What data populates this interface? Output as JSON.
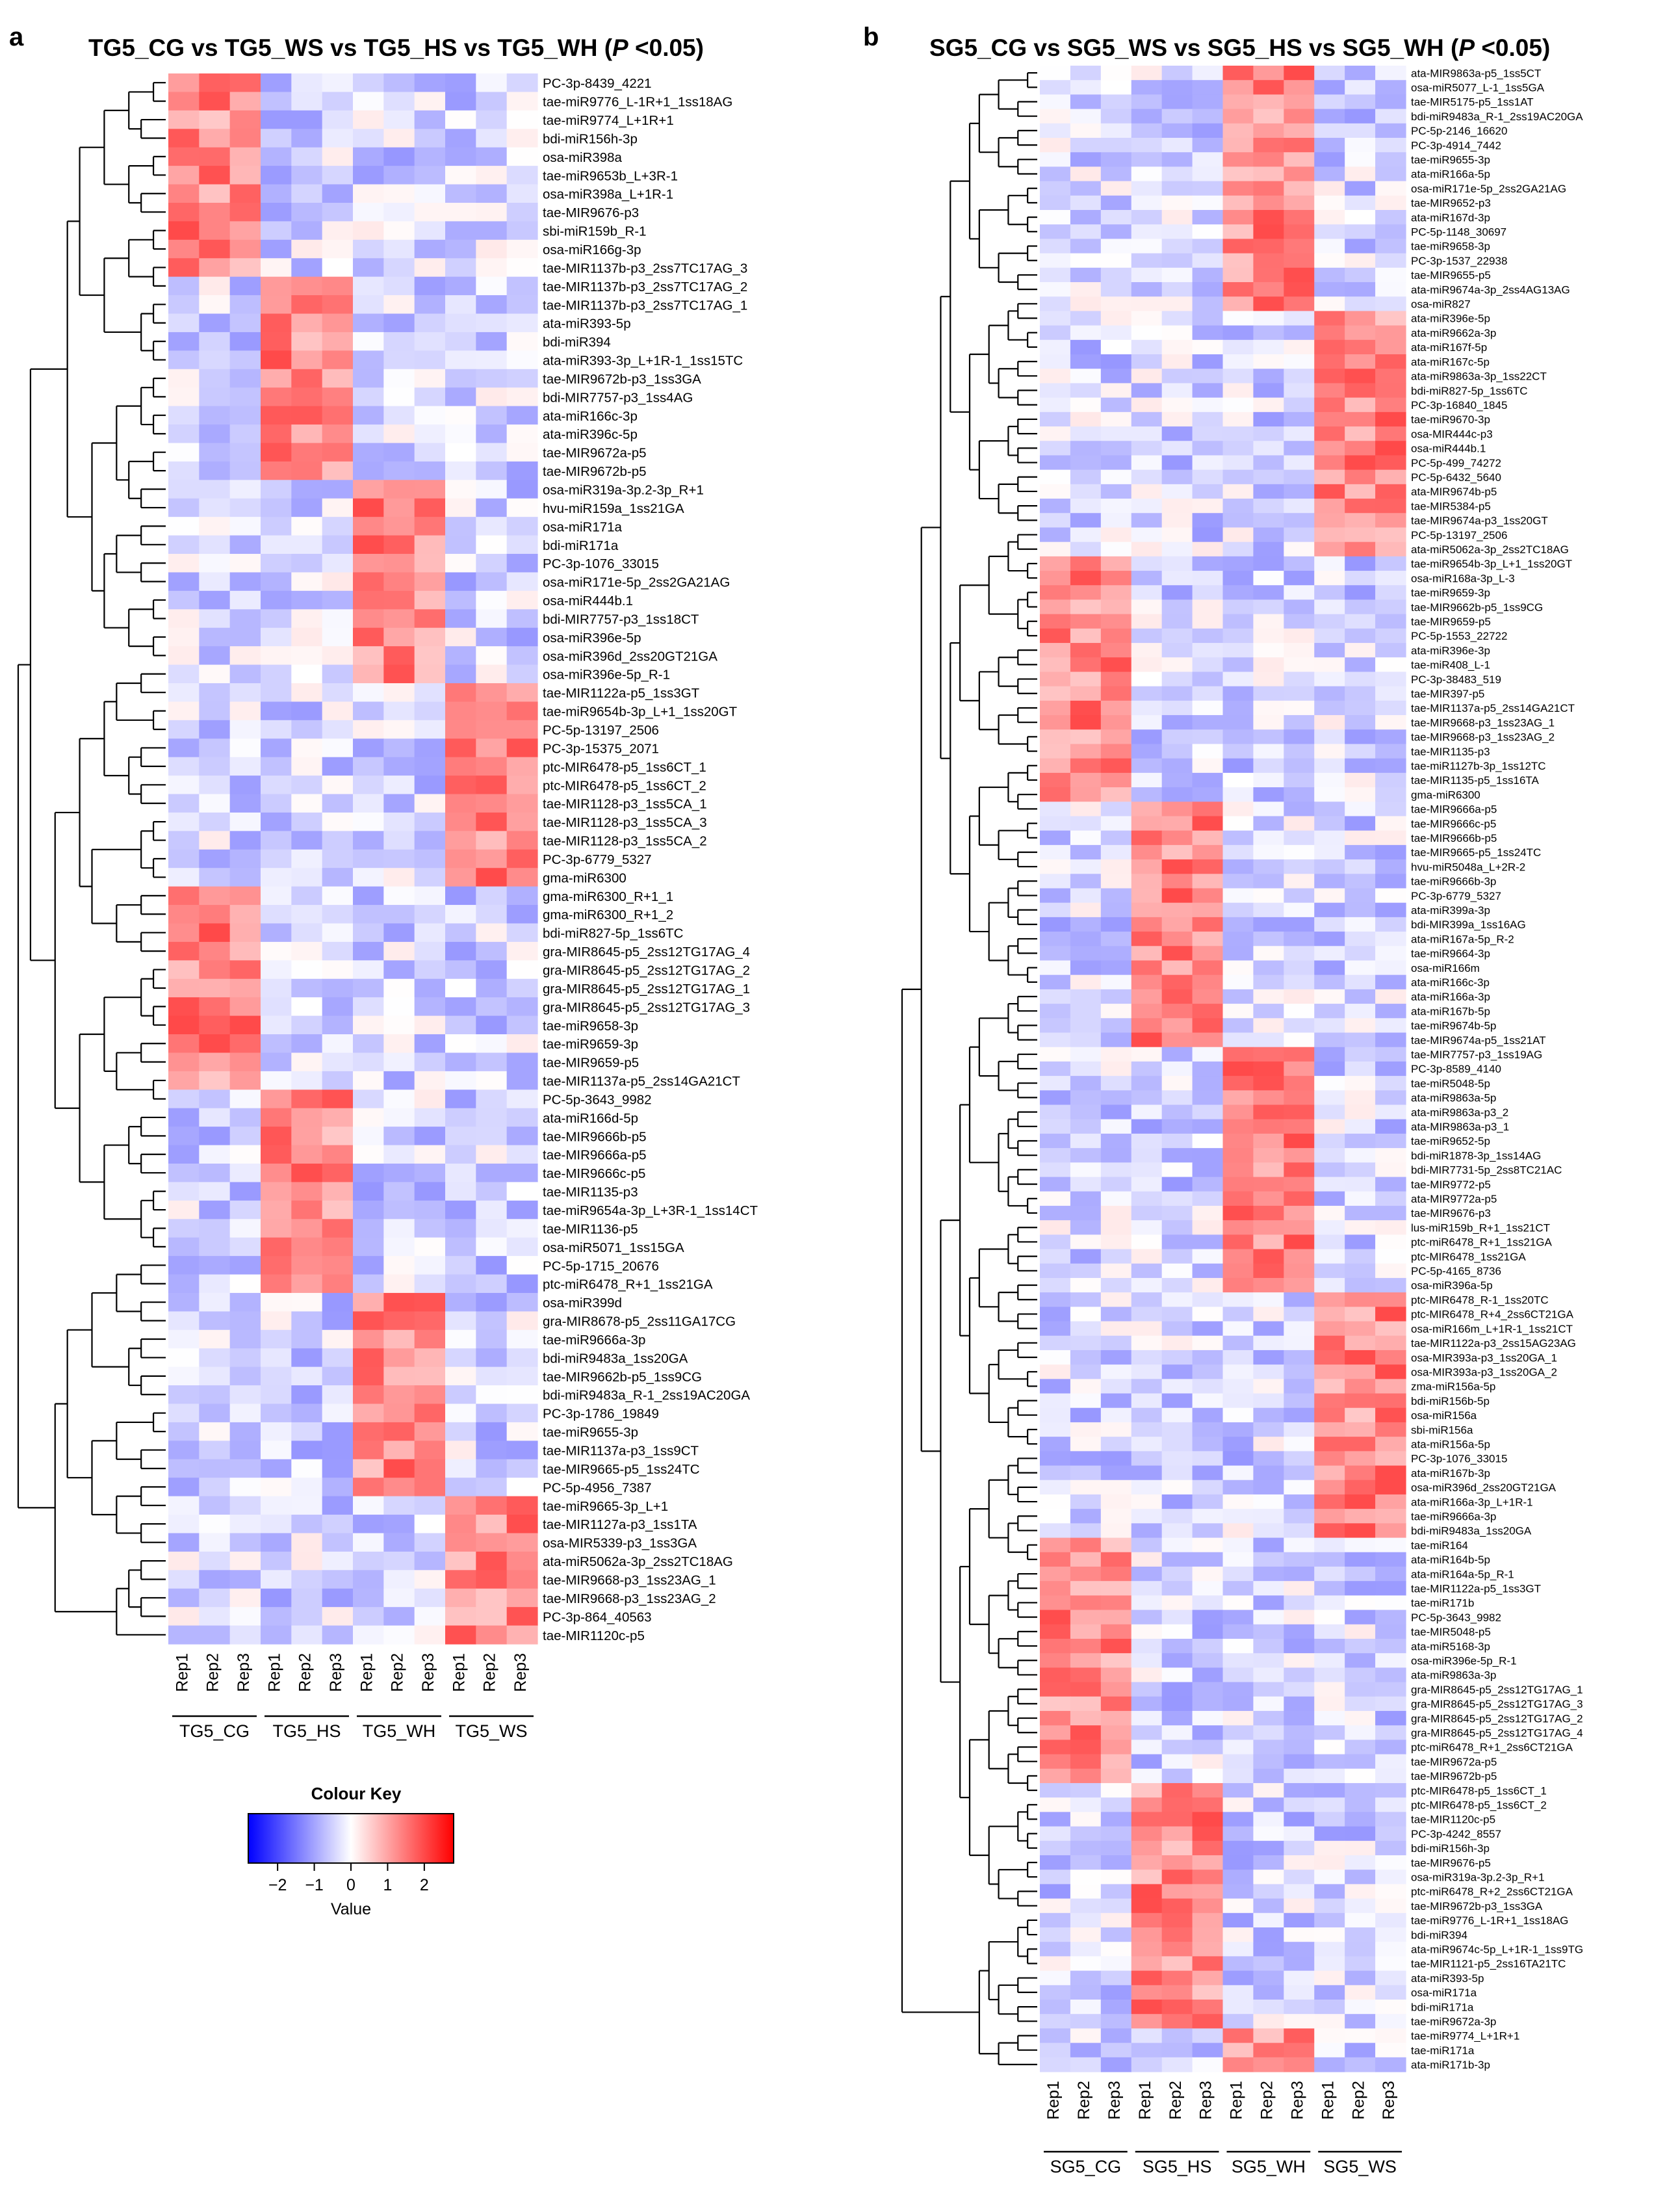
{
  "chart_data": [
    {
      "panel": "a",
      "type": "heatmap",
      "title": "TG5_CG vs TG5_WS vs TG5_HS vs TG5_WH",
      "title_suffix_italic": "P",
      "title_suffix": " <0.05)",
      "columns": [
        "Rep1",
        "Rep2",
        "Rep3",
        "Rep1",
        "Rep2",
        "Rep3",
        "Rep1",
        "Rep2",
        "Rep3",
        "Rep1",
        "Rep2",
        "Rep3"
      ],
      "groups": [
        "TG5_CG",
        "TG5_HS",
        "TG5_WH",
        "TG5_WS"
      ],
      "rows": [
        "PC-3p-8439_4221",
        "tae-miR9776_L-1R+1_1ss18AG",
        "tae-miR9774_L+1R+1",
        "bdi-miR156h-3p",
        "osa-miR398a",
        "tae-miR9653b_L+3R-1",
        "osa-miR398a_L+1R-1",
        "tae-MIR9676-p3",
        "sbi-miR159b_R-1",
        "osa-miR166g-3p",
        "tae-MIR1137b-p3_2ss7TC17AG_3",
        "tae-MIR1137b-p3_2ss7TC17AG_2",
        "tae-MIR1137b-p3_2ss7TC17AG_1",
        "ata-miR393-5p",
        "bdi-miR394",
        "ata-miR393-3p_L+1R-1_1ss15TC",
        "tae-MIR9672b-p3_1ss3GA",
        "bdi-MIR7757-p3_1ss4AG",
        "ata-miR166c-3p",
        "ata-miR396c-5p",
        "tae-MIR9672a-p5",
        "tae-MIR9672b-p5",
        "osa-miR319a-3p.2-3p_R+1",
        "hvu-miR159a_1ss21GA",
        "osa-miR171a",
        "bdi-miR171a",
        "PC-3p-1076_33015",
        "osa-miR171e-5p_2ss2GA21AG",
        "osa-miR444b.1",
        "bdi-MIR7757-p3_1ss18CT",
        "osa-miR396e-5p",
        "osa-miR396d_2ss20GT21GA",
        "osa-miR396e-5p_R-1",
        "tae-MIR1122a-p5_1ss3GT",
        "tae-miR9654b-3p_L+1_1ss20GT",
        "PC-5p-13197_2506",
        "PC-3p-15375_2071",
        "ptc-MIR6478-p5_1ss6CT_1",
        "ptc-MIR6478-p5_1ss6CT_2",
        "tae-MIR1128-p3_1ss5CA_1",
        "tae-MIR1128-p3_1ss5CA_3",
        "tae-MIR1128-p3_1ss5CA_2",
        "PC-3p-6779_5327",
        "gma-miR6300",
        "gma-miR6300_R+1_1",
        "gma-miR6300_R+1_2",
        "bdi-miR827-5p_1ss6TC",
        "gra-MIR8645-p5_2ss12TG17AG_4",
        "gra-MIR8645-p5_2ss12TG17AG_2",
        "gra-MIR8645-p5_2ss12TG17AG_1",
        "gra-MIR8645-p5_2ss12TG17AG_3",
        "tae-miR9658-3p",
        "tae-miR9659-3p",
        "tae-MIR9659-p5",
        "tae-MIR1137a-p5_2ss14GA21CT",
        "PC-5p-3643_9982",
        "ata-miR166d-5p",
        "tae-MIR9666b-p5",
        "tae-MIR9666a-p5",
        "tae-MIR9666c-p5",
        "tae-MIR1135-p3",
        "tae-miR9654a-3p_L+3R-1_1ss14CT",
        "tae-MIR1136-p5",
        "osa-miR5071_1ss15GA",
        "PC-5p-1715_20676",
        "ptc-miR6478_R+1_1ss21GA",
        "osa-miR399d",
        "gra-MIR8678-p5_2ss11GA17CG",
        "tae-miR9666a-3p",
        "bdi-miR9483a_1ss20GA",
        "tae-MIR9662b-p5_1ss9CG",
        "bdi-miR9483a_R-1_2ss19AC20GA",
        "PC-3p-1786_19849",
        "tae-miR9655-3p",
        "tae-MIR1137a-p3_1ss9CT",
        "tae-MIR9665-p5_1ss24TC",
        "PC-5p-4956_7387",
        "tae-miR9665-3p_L+1",
        "tae-MIR1127a-p3_1ss1TA",
        "osa-MIR5339-p3_1ss3GA",
        "ata-miR5062a-3p_2ss2TC18AG",
        "tae-MIR9668-p3_1ss23AG_1",
        "tae-MIR9668-p3_1ss23AG_2",
        "PC-3p-864_40563",
        "tae-MIR1120c-p5"
      ]
    },
    {
      "panel": "b",
      "type": "heatmap",
      "title": "SG5_CG vs SG5_WS vs SG5_HS vs SG5_WH",
      "title_suffix_italic": "P",
      "title_suffix": " <0.05)",
      "columns": [
        "Rep1",
        "Rep2",
        "Rep3",
        "Rep1",
        "Rep2",
        "Rep3",
        "Rep1",
        "Rep2",
        "Rep3",
        "Rep1",
        "Rep2",
        "Rep3"
      ],
      "groups": [
        "SG5_CG",
        "SG5_HS",
        "SG5_WH",
        "SG5_WS"
      ],
      "rows": [
        "ata-MIR9863a-p5_1ss5CT",
        "osa-miR5077_L-1_1ss5GA",
        "tae-MIR5175-p5_1ss1AT",
        "bdi-miR9483a_R-1_2ss19AC20GA",
        "PC-5p-2146_16620",
        "PC-3p-4914_7442",
        "tae-miR9655-3p",
        "ata-miR166a-5p",
        "osa-miR171e-5p_2ss2GA21AG",
        "tae-MIR9652-p3",
        "ata-miR167d-3p",
        "PC-5p-1148_30697",
        "tae-miR9658-3p",
        "PC-3p-1537_22938",
        "tae-MIR9655-p5",
        "ata-miR9674a-3p_2ss4AG13AG",
        "osa-miR827",
        "ata-miR396e-5p",
        "ata-miR9662a-3p",
        "ata-miR167f-5p",
        "ata-miR167c-5p",
        "ata-miR9863a-3p_1ss22CT",
        "bdi-miR827-5p_1ss6TC",
        "PC-3p-16840_1845",
        "tae-miR9670-3p",
        "osa-MIR444c-p3",
        "osa-miR444b.1",
        "PC-5p-499_74272",
        "PC-5p-6432_5640",
        "ata-MIR9674b-p5",
        "tae-MIR5384-p5",
        "tae-MIR9674a-p3_1ss20GT",
        "PC-5p-13197_2506",
        "ata-miR5062a-3p_2ss2TC18AG",
        "tae-miR9654b-3p_L+1_1ss20GT",
        "osa-miR168a-3p_L-3",
        "tae-miR9659-3p",
        "tae-MIR9662b-p5_1ss9CG",
        "tae-MIR9659-p5",
        "PC-5p-1553_22722",
        "ata-miR396e-3p",
        "tae-miR408_L-1",
        "PC-3p-38483_519",
        "tae-MIR397-p5",
        "tae-MIR1137a-p5_2ss14GA21CT",
        "tae-MIR9668-p3_1ss23AG_1",
        "tae-MIR9668-p3_1ss23AG_2",
        "tae-MIR1135-p3",
        "tae-miR1127b-3p_1ss12TC",
        "tae-MIR1135-p5_1ss16TA",
        "gma-miR6300",
        "tae-MIR9666a-p5",
        "tae-MIR9666c-p5",
        "tae-MIR9666b-p5",
        "tae-MIR9665-p5_1ss24TC",
        "hvu-miR5048a_L+2R-2",
        "tae-miR9666b-3p",
        "PC-3p-6779_5327",
        "ata-miR399a-3p",
        "bdi-MIR399a_1ss16AG",
        "ata-miR167a-5p_R-2",
        "tae-miR9664-3p",
        "osa-miR166m",
        "ata-miR166c-3p",
        "ata-miR166a-3p",
        "ata-miR167b-5p",
        "tae-miR9674b-5p",
        "tae-MIR9674a-p5_1ss21AT",
        "tae-MIR7757-p3_1ss19AG",
        "PC-3p-8589_4140",
        "tae-miR5048-5p",
        "ata-miR9863a-5p",
        "ata-miR9863a-p3_2",
        "ata-MIR9863a-p3_1",
        "tae-miR9652-5p",
        "bdi-miR1878-3p_1ss14AG",
        "bdi-MIR7731-5p_2ss8TC21AC",
        "tae-MIR9772-p5",
        "ata-MIR9772a-p5",
        "tae-MIR9676-p3",
        "lus-miR159b_R+1_1ss21CT",
        "ptc-miR6478_R+1_1ss21GA",
        "ptc-MIR6478_1ss21GA",
        "PC-5p-4165_8736",
        "osa-miR396a-5p",
        "ptc-MIR6478_R-1_1ss20TC",
        "ptc-MIR6478_R+4_2ss6CT21GA",
        "osa-miR166m_L+1R-1_1ss21CT",
        "tae-MIR1122a-p3_2ss15AG23AG",
        "osa-MIR393a-p3_1ss20GA_1",
        "osa-MIR393a-p3_1ss20GA_2",
        "zma-miR156a-5p",
        "bdi-miR156b-5p",
        "osa-miR156a",
        "sbi-miR156a",
        "ata-miR156a-5p",
        "PC-3p-1076_33015",
        "ata-miR167b-3p",
        "osa-miR396d_2ss20GT21GA",
        "ata-miR166a-3p_L+1R-1",
        "tae-miR9666a-3p",
        "bdi-miR9483a_1ss20GA",
        "tae-miR164",
        "ata-miR164b-5p",
        "ata-miR164a-5p_R-1",
        "tae-MIR1122a-p5_1ss3GT",
        "tae-miR171b",
        "PC-5p-3643_9982",
        "tae-MIR5048-p5",
        "ata-miR5168-3p",
        "osa-miR396e-5p_R-1",
        "ata-miR9863a-3p",
        "gra-MIR8645-p5_2ss12TG17AG_1",
        "gra-MIR8645-p5_2ss12TG17AG_3",
        "gra-MIR8645-p5_2ss12TG17AG_2",
        "gra-MIR8645-p5_2ss12TG17AG_4",
        "ptc-miR6478_R+1_2ss6CT21GA",
        "tae-MIR9672a-p5",
        "tae-MIR9672b-p5",
        "ptc-MIR6478-p5_1ss6CT_1",
        "ptc-MIR6478-p5_1ss6CT_2",
        "tae-MIR1120c-p5",
        "PC-3p-4242_8557",
        "bdi-miR156h-3p",
        "tae-MIR9676-p5",
        "osa-miR319a-3p.2-3p_R+1",
        "ptc-miR6478_R+2_2ss6CT21GA",
        "tae-MIR9672b-p3_1ss3GA",
        "tae-miR9776_L-1R+1_1ss18AG",
        "bdi-miR394",
        "ata-miR9674c-5p_L+1R-1_1ss9TG",
        "tae-MIR1121-p5_2ss16TA21TC",
        "ata-miR393-5p",
        "osa-miR171a",
        "bdi-miR171a",
        "tae-miR9672a-3p",
        "tae-miR9774_L+1R+1",
        "tae-miR171a",
        "ata-miR171b-3p"
      ]
    }
  ],
  "colour_key": {
    "title": "Colour Key",
    "xlabel": "Value",
    "ticks": [
      "−2",
      "−1",
      "0",
      "1",
      "2"
    ],
    "range": [
      -2.8,
      2.8
    ],
    "low_color": "#0000ff",
    "mid_color": "#ffffff",
    "high_color": "#ff0000"
  }
}
